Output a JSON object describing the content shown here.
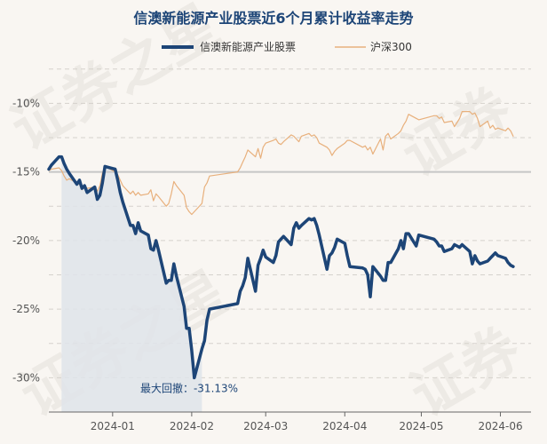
{
  "chart_data": {
    "type": "line",
    "title": "信澳新能源产业股票近6个月累计收益率走势",
    "xlabel": "",
    "ylabel": "",
    "ylim": [
      -32.5,
      -7
    ],
    "yticks": [
      -10,
      -15,
      -20,
      -25,
      -30
    ],
    "ytick_labels": [
      "-10%",
      "-15%",
      "-20%",
      "-25%",
      "-30%"
    ],
    "x_range": [
      "2023-12-07",
      "2024-06-13"
    ],
    "xticks": [
      "2024-01-01",
      "2024-02-01",
      "2024-03-01",
      "2024-04-01",
      "2024-05-01",
      "2024-06-01"
    ],
    "xtick_labels": [
      "2024-01",
      "2024-02",
      "2024-03",
      "2024-04",
      "2024-05",
      "2024-06"
    ],
    "reference_line": -15,
    "grid": true,
    "legend_position": "top-center",
    "annotation": {
      "label": "最大回撤：-31.13%",
      "x": "2024-01-31",
      "y": -30.8
    },
    "drawdown_area": {
      "start": "2023-12-12",
      "end": "2024-02-05"
    },
    "colors": {
      "fund": "#1d4577",
      "index": "#e8b07c",
      "area": "#dfe4ea",
      "title": "#1d4577"
    },
    "series": [
      {
        "name": "信澳新能源产业股票",
        "points": [
          [
            "2023-12-07",
            -14.8
          ],
          [
            "2023-12-08",
            -14.5
          ],
          [
            "2023-12-11",
            -13.9
          ],
          [
            "2023-12-12",
            -13.9
          ],
          [
            "2023-12-13",
            -14.4
          ],
          [
            "2023-12-14",
            -14.8
          ],
          [
            "2023-12-15",
            -15.1
          ],
          [
            "2023-12-18",
            -15.9
          ],
          [
            "2023-12-19",
            -15.6
          ],
          [
            "2023-12-20",
            -16.2
          ],
          [
            "2023-12-21",
            -16.0
          ],
          [
            "2023-12-22",
            -16.5
          ],
          [
            "2023-12-25",
            -16.1
          ],
          [
            "2023-12-26",
            -17.0
          ],
          [
            "2023-12-27",
            -16.7
          ],
          [
            "2023-12-28",
            -15.8
          ],
          [
            "2023-12-29",
            -14.6
          ],
          [
            "2024-01-02",
            -14.8
          ],
          [
            "2024-01-03",
            -15.6
          ],
          [
            "2024-01-04",
            -16.5
          ],
          [
            "2024-01-05",
            -17.2
          ],
          [
            "2024-01-08",
            -18.9
          ],
          [
            "2024-01-09",
            -18.9
          ],
          [
            "2024-01-10",
            -19.5
          ],
          [
            "2024-01-11",
            -18.7
          ],
          [
            "2024-01-12",
            -19.3
          ],
          [
            "2024-01-15",
            -19.6
          ],
          [
            "2024-01-16",
            -20.6
          ],
          [
            "2024-01-17",
            -20.7
          ],
          [
            "2024-01-18",
            -20.0
          ],
          [
            "2024-01-19",
            -20.7
          ],
          [
            "2024-01-22",
            -23.1
          ],
          [
            "2024-01-23",
            -22.9
          ],
          [
            "2024-01-24",
            -22.9
          ],
          [
            "2024-01-25",
            -21.7
          ],
          [
            "2024-01-26",
            -22.6
          ],
          [
            "2024-01-29",
            -24.8
          ],
          [
            "2024-01-30",
            -26.4
          ],
          [
            "2024-01-31",
            -26.4
          ],
          [
            "2024-02-01",
            -28.0
          ],
          [
            "2024-02-02",
            -30.0
          ],
          [
            "2024-02-05",
            -27.9
          ],
          [
            "2024-02-06",
            -27.3
          ],
          [
            "2024-02-07",
            -25.8
          ],
          [
            "2024-02-08",
            -25.0
          ],
          [
            "2024-02-19",
            -24.6
          ],
          [
            "2024-02-20",
            -23.7
          ],
          [
            "2024-02-21",
            -23.3
          ],
          [
            "2024-02-22",
            -22.7
          ],
          [
            "2024-02-23",
            -21.3
          ],
          [
            "2024-02-26",
            -23.7
          ],
          [
            "2024-02-27",
            -21.8
          ],
          [
            "2024-02-28",
            -21.3
          ],
          [
            "2024-02-29",
            -20.7
          ],
          [
            "2024-03-01",
            -21.2
          ],
          [
            "2024-03-04",
            -21.6
          ],
          [
            "2024-03-05",
            -21.1
          ],
          [
            "2024-03-06",
            -20.1
          ],
          [
            "2024-03-07",
            -19.9
          ],
          [
            "2024-03-08",
            -19.7
          ],
          [
            "2024-03-11",
            -20.3
          ],
          [
            "2024-03-12",
            -19.1
          ],
          [
            "2024-03-13",
            -18.7
          ],
          [
            "2024-03-14",
            -19.1
          ],
          [
            "2024-03-15",
            -18.9
          ],
          [
            "2024-03-18",
            -18.4
          ],
          [
            "2024-03-19",
            -18.5
          ],
          [
            "2024-03-20",
            -18.4
          ],
          [
            "2024-03-21",
            -18.9
          ],
          [
            "2024-03-22",
            -19.6
          ],
          [
            "2024-03-25",
            -22.1
          ],
          [
            "2024-03-26",
            -21.1
          ],
          [
            "2024-03-27",
            -20.9
          ],
          [
            "2024-03-28",
            -20.5
          ],
          [
            "2024-03-29",
            -19.9
          ],
          [
            "2024-04-01",
            -20.2
          ],
          [
            "2024-04-02",
            -21.1
          ],
          [
            "2024-04-03",
            -21.9
          ],
          [
            "2024-04-08",
            -22.0
          ],
          [
            "2024-04-09",
            -22.1
          ],
          [
            "2024-04-10",
            -22.5
          ],
          [
            "2024-04-11",
            -24.1
          ],
          [
            "2024-04-12",
            -21.9
          ],
          [
            "2024-04-15",
            -22.6
          ],
          [
            "2024-04-16",
            -22.9
          ],
          [
            "2024-04-17",
            -22.9
          ],
          [
            "2024-04-18",
            -21.6
          ],
          [
            "2024-04-19",
            -21.6
          ],
          [
            "2024-04-22",
            -20.6
          ],
          [
            "2024-04-23",
            -20.0
          ],
          [
            "2024-04-24",
            -20.6
          ],
          [
            "2024-04-25",
            -19.5
          ],
          [
            "2024-04-26",
            -19.5
          ],
          [
            "2024-04-29",
            -20.4
          ],
          [
            "2024-04-30",
            -19.6
          ],
          [
            "2024-05-06",
            -19.9
          ],
          [
            "2024-05-07",
            -20.1
          ],
          [
            "2024-05-08",
            -20.4
          ],
          [
            "2024-05-09",
            -20.4
          ],
          [
            "2024-05-10",
            -20.8
          ],
          [
            "2024-05-13",
            -20.6
          ],
          [
            "2024-05-14",
            -20.3
          ],
          [
            "2024-05-15",
            -20.4
          ],
          [
            "2024-05-16",
            -20.5
          ],
          [
            "2024-05-17",
            -20.3
          ],
          [
            "2024-05-20",
            -20.8
          ],
          [
            "2024-05-21",
            -21.7
          ],
          [
            "2024-05-22",
            -21.1
          ],
          [
            "2024-05-23",
            -21.5
          ],
          [
            "2024-05-24",
            -21.7
          ],
          [
            "2024-05-27",
            -21.5
          ],
          [
            "2024-05-28",
            -21.3
          ],
          [
            "2024-05-29",
            -21.1
          ],
          [
            "2024-05-30",
            -20.9
          ],
          [
            "2024-05-31",
            -21.1
          ],
          [
            "2024-06-03",
            -21.3
          ],
          [
            "2024-06-04",
            -21.6
          ],
          [
            "2024-06-05",
            -21.8
          ],
          [
            "2024-06-06",
            -21.9
          ]
        ]
      },
      {
        "name": "沪深300",
        "points": [
          [
            "2023-12-07",
            -14.9
          ],
          [
            "2023-12-08",
            -14.8
          ],
          [
            "2023-12-11",
            -14.7
          ],
          [
            "2023-12-12",
            -14.9
          ],
          [
            "2023-12-13",
            -15.3
          ],
          [
            "2023-12-14",
            -15.6
          ],
          [
            "2023-12-15",
            -15.5
          ],
          [
            "2023-12-18",
            -15.8
          ],
          [
            "2023-12-19",
            -15.9
          ],
          [
            "2023-12-20",
            -16.3
          ],
          [
            "2023-12-21",
            -16.0
          ],
          [
            "2023-12-22",
            -16.2
          ],
          [
            "2023-12-25",
            -16.1
          ],
          [
            "2023-12-26",
            -16.4
          ],
          [
            "2023-12-27",
            -16.0
          ],
          [
            "2023-12-28",
            -15.1
          ],
          [
            "2023-12-29",
            -14.6
          ],
          [
            "2024-01-02",
            -15.0
          ],
          [
            "2024-01-03",
            -15.2
          ],
          [
            "2024-01-04",
            -15.6
          ],
          [
            "2024-01-05",
            -16.0
          ],
          [
            "2024-01-08",
            -16.6
          ],
          [
            "2024-01-09",
            -16.4
          ],
          [
            "2024-01-10",
            -16.7
          ],
          [
            "2024-01-11",
            -16.5
          ],
          [
            "2024-01-12",
            -16.7
          ],
          [
            "2024-01-15",
            -16.6
          ],
          [
            "2024-01-16",
            -16.3
          ],
          [
            "2024-01-17",
            -17.1
          ],
          [
            "2024-01-18",
            -16.6
          ],
          [
            "2024-01-19",
            -16.8
          ],
          [
            "2024-01-22",
            -17.5
          ],
          [
            "2024-01-23",
            -17.3
          ],
          [
            "2024-01-24",
            -16.6
          ],
          [
            "2024-01-25",
            -15.7
          ],
          [
            "2024-01-26",
            -16.0
          ],
          [
            "2024-01-29",
            -16.7
          ],
          [
            "2024-01-30",
            -17.6
          ],
          [
            "2024-01-31",
            -17.9
          ],
          [
            "2024-02-01",
            -18.1
          ],
          [
            "2024-02-02",
            -17.9
          ],
          [
            "2024-02-05",
            -17.3
          ],
          [
            "2024-02-06",
            -16.1
          ],
          [
            "2024-02-07",
            -15.8
          ],
          [
            "2024-02-08",
            -15.3
          ],
          [
            "2024-02-19",
            -15.0
          ],
          [
            "2024-02-20",
            -14.7
          ],
          [
            "2024-02-21",
            -14.3
          ],
          [
            "2024-02-22",
            -13.9
          ],
          [
            "2024-02-23",
            -13.4
          ],
          [
            "2024-02-26",
            -13.9
          ],
          [
            "2024-02-27",
            -13.3
          ],
          [
            "2024-02-28",
            -14.0
          ],
          [
            "2024-02-29",
            -13.2
          ],
          [
            "2024-03-01",
            -12.9
          ],
          [
            "2024-03-04",
            -12.7
          ],
          [
            "2024-03-05",
            -12.6
          ],
          [
            "2024-03-06",
            -12.9
          ],
          [
            "2024-03-07",
            -13.0
          ],
          [
            "2024-03-08",
            -12.8
          ],
          [
            "2024-03-11",
            -12.3
          ],
          [
            "2024-03-12",
            -12.4
          ],
          [
            "2024-03-13",
            -12.6
          ],
          [
            "2024-03-14",
            -12.8
          ],
          [
            "2024-03-15",
            -12.4
          ],
          [
            "2024-03-18",
            -12.2
          ],
          [
            "2024-03-19",
            -12.4
          ],
          [
            "2024-03-20",
            -12.3
          ],
          [
            "2024-03-21",
            -12.5
          ],
          [
            "2024-03-22",
            -12.9
          ],
          [
            "2024-03-25",
            -13.2
          ],
          [
            "2024-03-26",
            -13.4
          ],
          [
            "2024-03-27",
            -13.8
          ],
          [
            "2024-03-28",
            -13.5
          ],
          [
            "2024-03-29",
            -13.3
          ],
          [
            "2024-04-01",
            -12.9
          ],
          [
            "2024-04-02",
            -12.7
          ],
          [
            "2024-04-03",
            -12.7
          ],
          [
            "2024-04-08",
            -13.2
          ],
          [
            "2024-04-09",
            -13.1
          ],
          [
            "2024-04-10",
            -13.4
          ],
          [
            "2024-04-11",
            -13.2
          ],
          [
            "2024-04-12",
            -13.7
          ],
          [
            "2024-04-15",
            -12.6
          ],
          [
            "2024-04-16",
            -13.4
          ],
          [
            "2024-04-17",
            -12.4
          ],
          [
            "2024-04-18",
            -12.2
          ],
          [
            "2024-04-19",
            -12.6
          ],
          [
            "2024-04-22",
            -12.2
          ],
          [
            "2024-04-23",
            -12.0
          ],
          [
            "2024-04-24",
            -11.6
          ],
          [
            "2024-04-25",
            -11.3
          ],
          [
            "2024-04-26",
            -10.8
          ],
          [
            "2024-04-29",
            -11.1
          ],
          [
            "2024-04-30",
            -11.2
          ],
          [
            "2024-05-06",
            -10.9
          ],
          [
            "2024-05-07",
            -10.9
          ],
          [
            "2024-05-08",
            -11.1
          ],
          [
            "2024-05-09",
            -11.0
          ],
          [
            "2024-05-10",
            -11.4
          ],
          [
            "2024-05-13",
            -11.3
          ],
          [
            "2024-05-14",
            -11.7
          ],
          [
            "2024-05-15",
            -11.4
          ],
          [
            "2024-05-16",
            -11.1
          ],
          [
            "2024-05-17",
            -10.6
          ],
          [
            "2024-05-20",
            -10.6
          ],
          [
            "2024-05-21",
            -10.8
          ],
          [
            "2024-05-22",
            -10.7
          ],
          [
            "2024-05-23",
            -11.1
          ],
          [
            "2024-05-24",
            -11.7
          ],
          [
            "2024-05-27",
            -11.3
          ],
          [
            "2024-05-28",
            -11.8
          ],
          [
            "2024-05-29",
            -11.6
          ],
          [
            "2024-05-30",
            -11.9
          ],
          [
            "2024-05-31",
            -11.8
          ],
          [
            "2024-06-03",
            -12.0
          ],
          [
            "2024-06-04",
            -11.8
          ],
          [
            "2024-06-05",
            -12.0
          ],
          [
            "2024-06-06",
            -12.4
          ]
        ]
      }
    ]
  }
}
